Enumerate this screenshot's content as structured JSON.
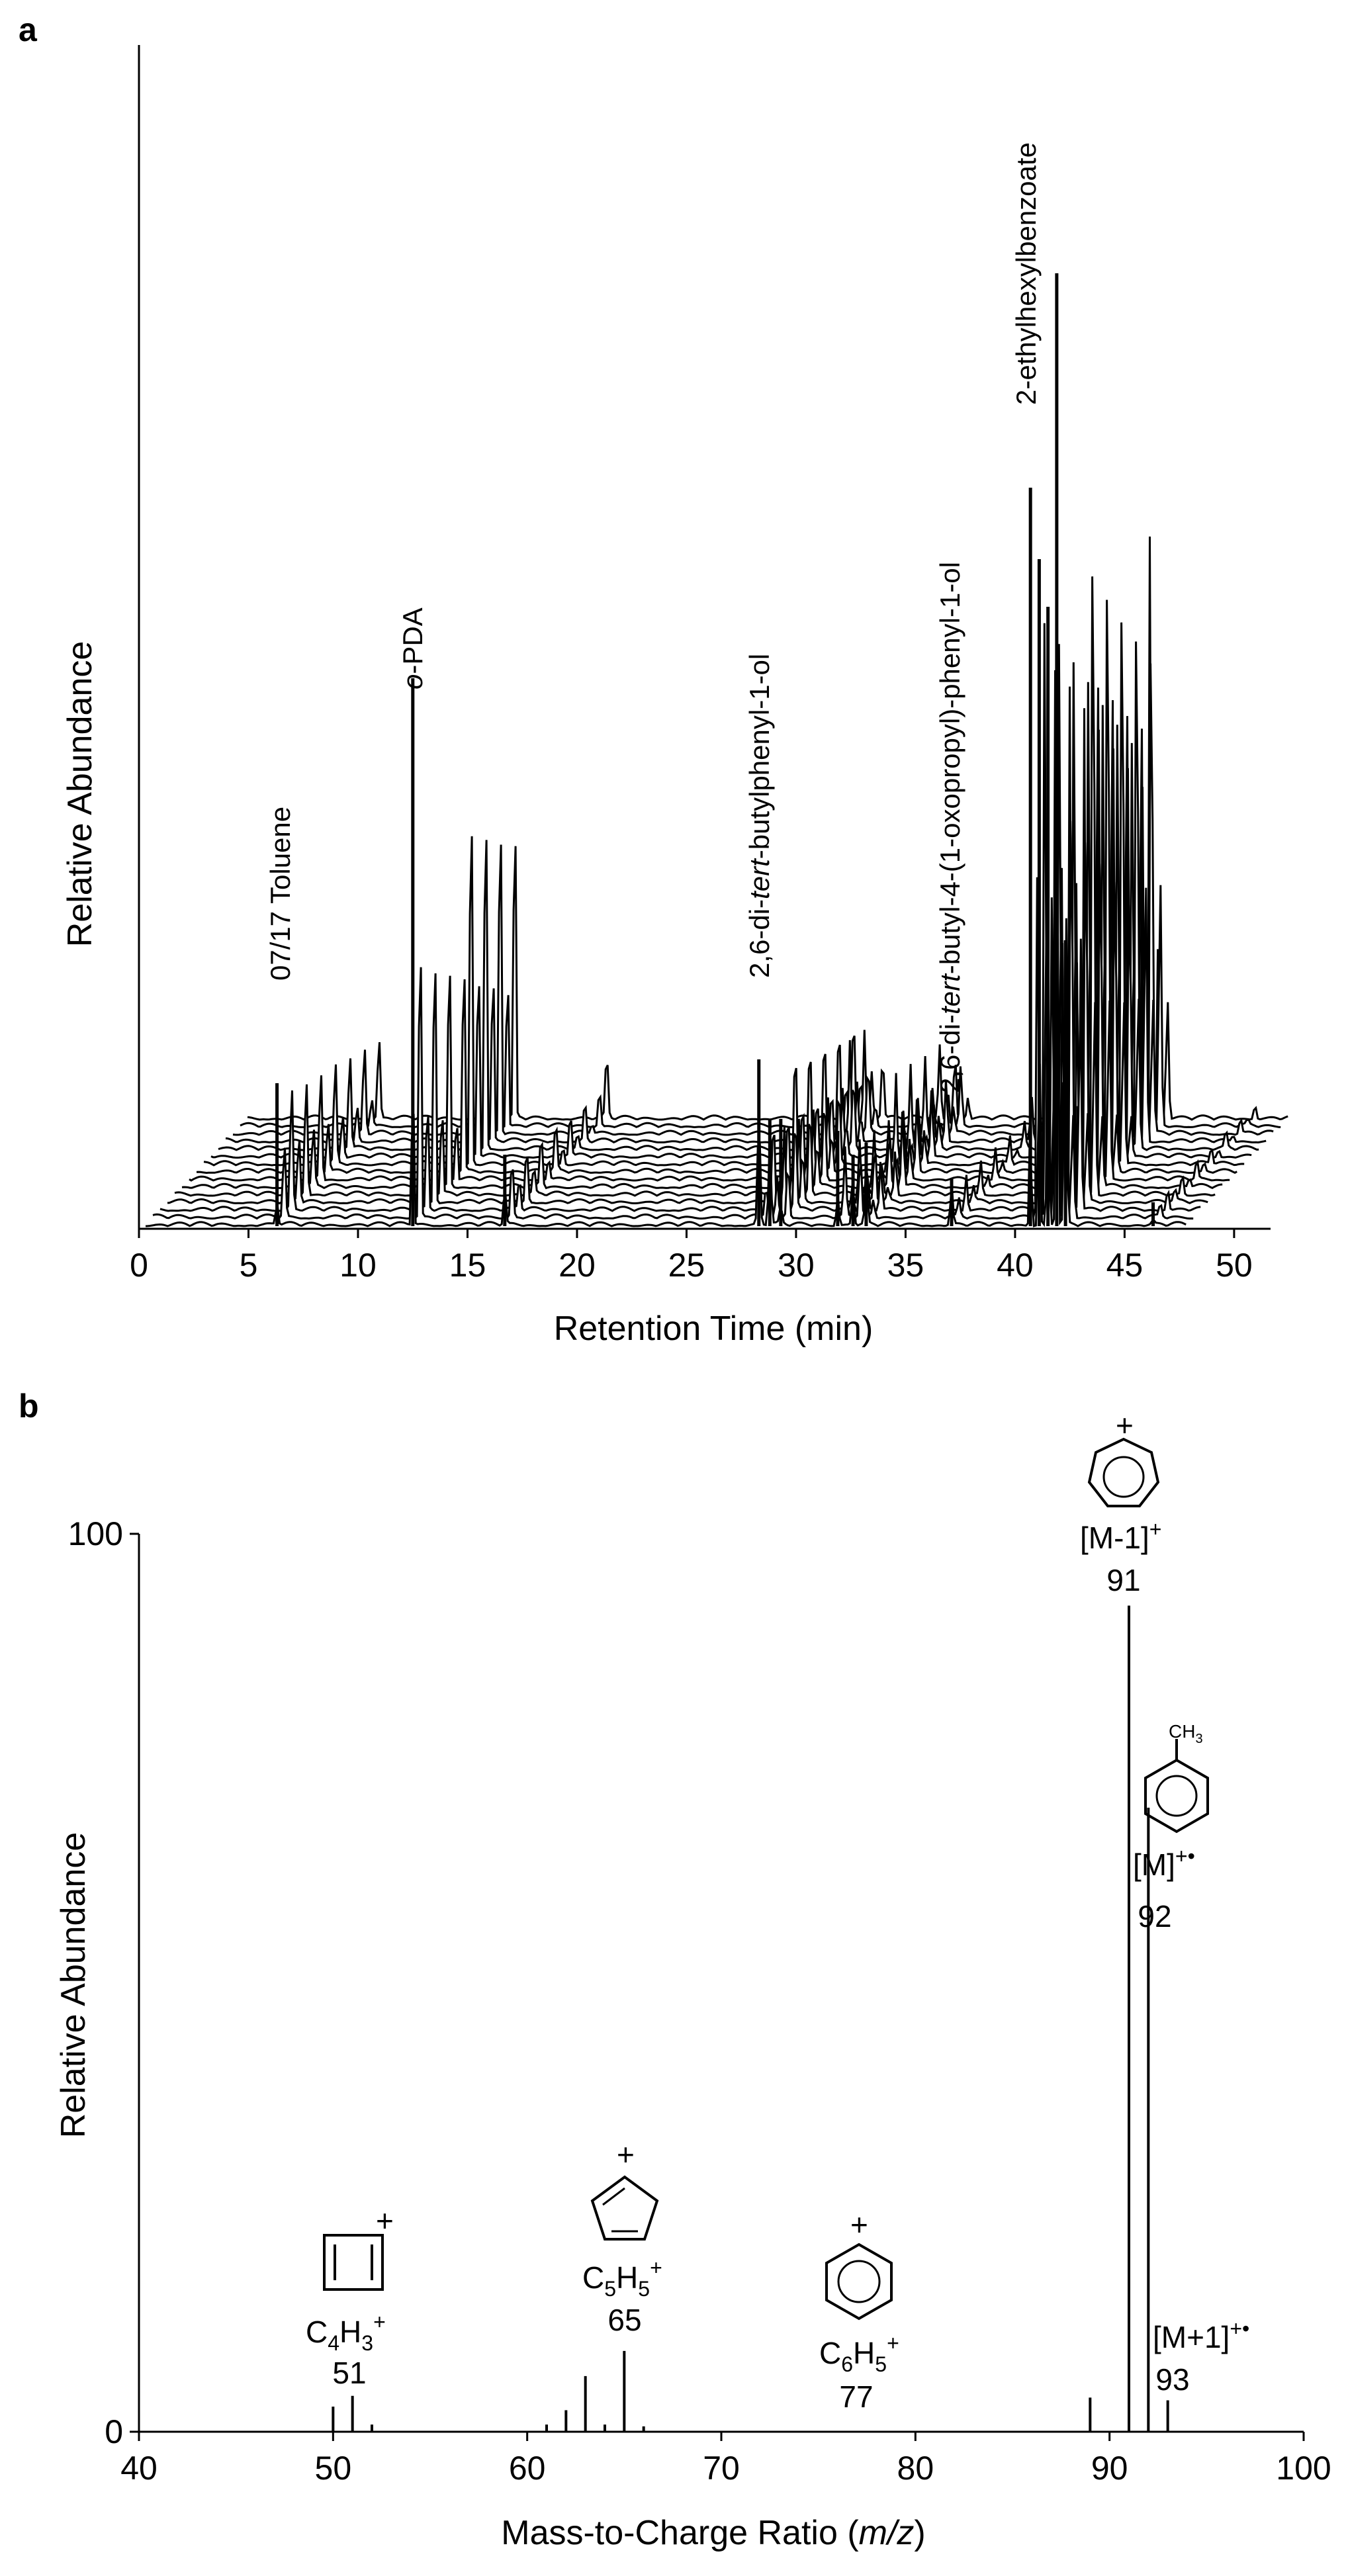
{
  "panels": [
    {
      "letter": "a"
    },
    {
      "letter": "b"
    }
  ],
  "chart_data": [
    {
      "type": "line",
      "panel": "a",
      "xlabel": "Retention Time (min)",
      "ylabel": "Relative Abundance",
      "xlim": [
        0,
        51
      ],
      "xticks": [
        0,
        5,
        10,
        15,
        20,
        25,
        30,
        35,
        40,
        45,
        50
      ],
      "ylim": [
        0,
        100
      ],
      "grid": false,
      "traces": 15,
      "peaks": [
        {
          "x": 6.0,
          "y": 12,
          "label": "07/17 Toluene"
        },
        {
          "x": 12.2,
          "y": 46,
          "label": "o-PDA"
        },
        {
          "x": 16.4,
          "y": 6
        },
        {
          "x": 28.0,
          "y": 14,
          "label": "2,6-di-tert-butylphenyl-1-ol"
        },
        {
          "x": 28.5,
          "y": 9
        },
        {
          "x": 29.0,
          "y": 9
        },
        {
          "x": 31.6,
          "y": 8
        },
        {
          "x": 32.3,
          "y": 6
        },
        {
          "x": 32.9,
          "y": 7
        },
        {
          "x": 36.8,
          "y": 4,
          "label": "2,6-di-tert-butyl-4-(1-oxopropyl)-phenyl-1-ol"
        },
        {
          "x": 40.4,
          "y": 62,
          "label": "2-ethylhexylbenzoate"
        },
        {
          "x": 40.8,
          "y": 56
        },
        {
          "x": 41.2,
          "y": 52
        },
        {
          "x": 41.6,
          "y": 80
        },
        {
          "x": 42.0,
          "y": 24
        },
        {
          "x": 46.0,
          "y": 2
        }
      ]
    },
    {
      "type": "bar",
      "panel": "b",
      "xlabel": "Mass-to-Charge Ratio (m/z)",
      "ylabel": "Relative Abundance",
      "xlim": [
        40,
        100
      ],
      "xticks": [
        40,
        50,
        60,
        70,
        80,
        90,
        100
      ],
      "ylim": [
        0,
        100
      ],
      "yticks": [
        0,
        100
      ],
      "grid": false,
      "x": [
        50,
        51,
        52,
        61,
        62,
        63,
        64,
        65,
        66,
        89,
        91,
        92,
        93
      ],
      "values": [
        2.8,
        4.0,
        0.8,
        0.8,
        2.4,
        6.2,
        0.8,
        9.0,
        0.6,
        3.8,
        92.0,
        69.5,
        3.5
      ],
      "annotations": [
        {
          "mz": 51,
          "formula": "C",
          "n1": "4",
          "h": "H",
          "n2": "3",
          "charge": "+",
          "value": "51"
        },
        {
          "mz": 65,
          "formula": "C",
          "n1": "5",
          "h": "H",
          "n2": "5",
          "charge": "+",
          "value": "65"
        },
        {
          "mz": 77,
          "formula": "C",
          "n1": "6",
          "h": "H",
          "n2": "5",
          "charge": "+",
          "value": "77"
        },
        {
          "mz": 91,
          "ion": "[M-1]",
          "charge": "+",
          "value": "91"
        },
        {
          "mz": 92,
          "ion": "[M]",
          "charge": "+•",
          "value": "92"
        },
        {
          "mz": 93,
          "ion": "[M+1]",
          "charge": "+•",
          "value": "93"
        }
      ],
      "structure_labels": {
        "methyl": "CH",
        "methyl_sub": "3",
        "ring_charge": "+"
      }
    }
  ]
}
